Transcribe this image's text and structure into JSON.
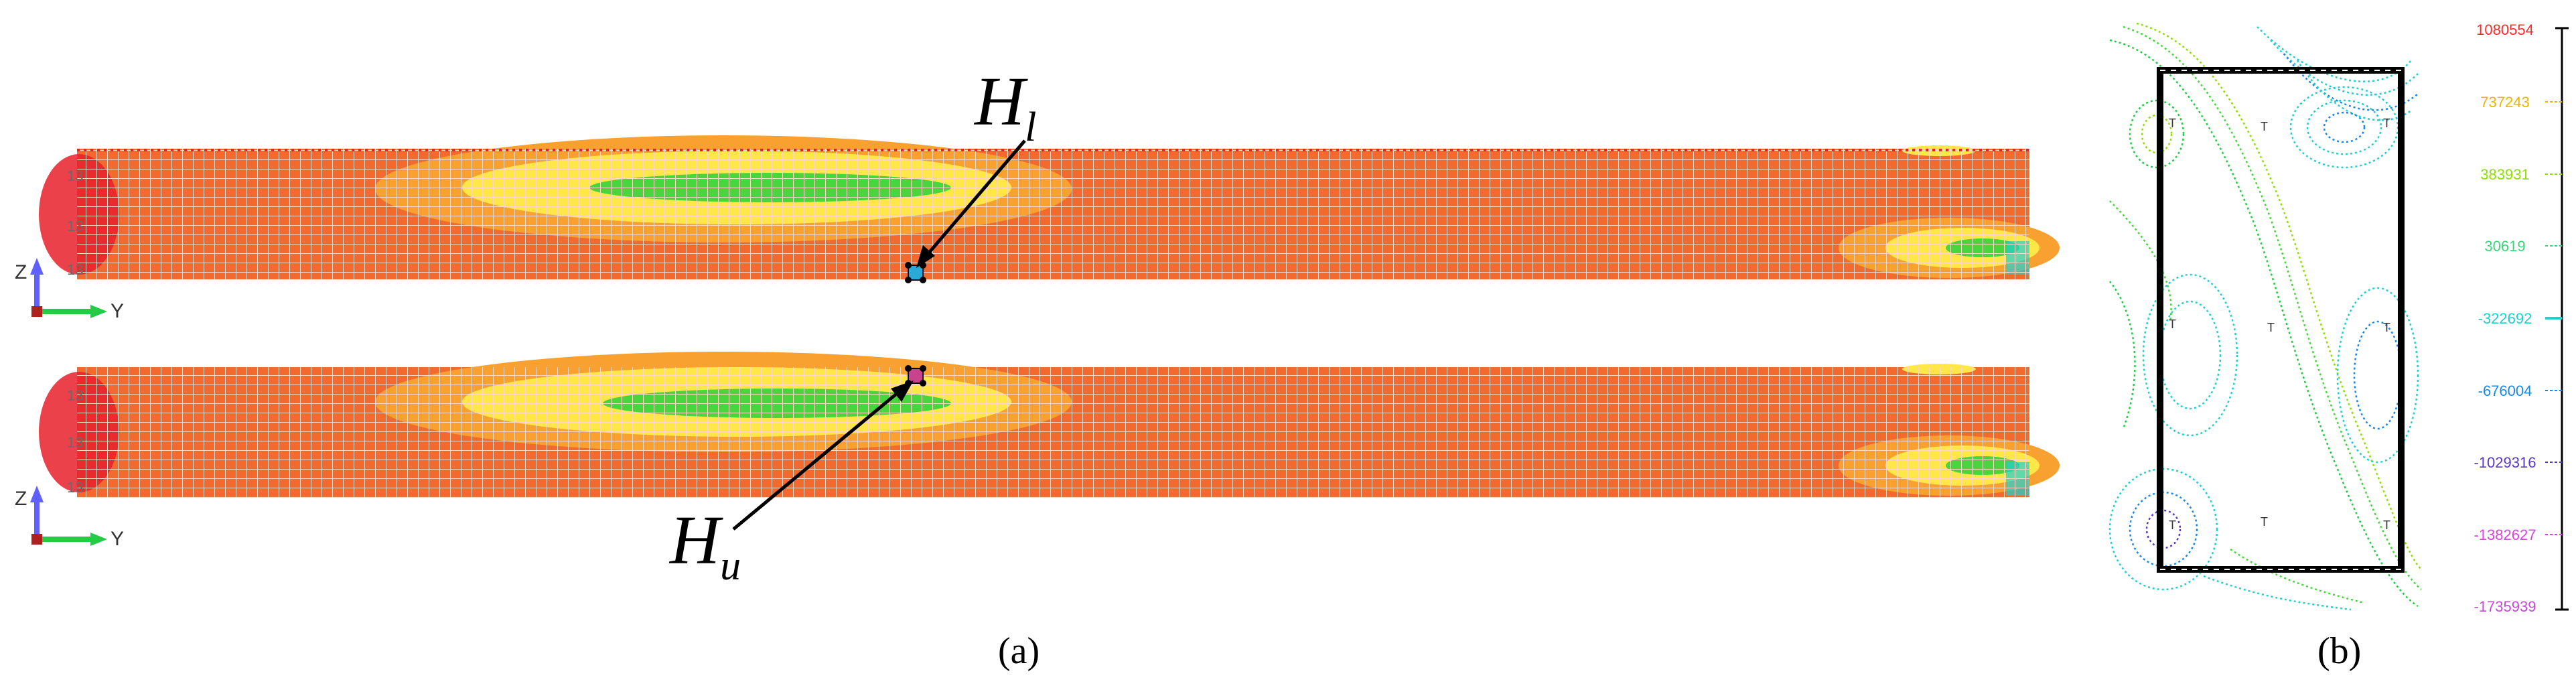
{
  "panel_a": {
    "caption": "(a)",
    "label_upper_marker": "H",
    "label_upper_marker_sub": "l",
    "label_lower_marker": "H",
    "label_lower_marker_sub": "u",
    "axis_z": "Z",
    "axis_y": "Y",
    "colors": {
      "plate": "#f26a2e",
      "grid": "#ffd7c2",
      "yellow": "#ffe74a",
      "green": "#47d63c",
      "red": "#e8202a",
      "marker_upper": "#2aa8d8",
      "marker_lower": "#c8428e"
    }
  },
  "panel_b": {
    "caption": "(b)",
    "legend": {
      "labels": [
        "1080554",
        "737243",
        "383931",
        "30619",
        "-322692",
        "-676004",
        "-1029316",
        "-1382627",
        "-1735939"
      ],
      "colors": [
        "#ff2a2a",
        "#f0b400",
        "#8fe000",
        "#3ad77a",
        "#1fd0d0",
        "#1a88e6",
        "#5a38c8",
        "#e040e0",
        "#c44ad6"
      ]
    }
  }
}
